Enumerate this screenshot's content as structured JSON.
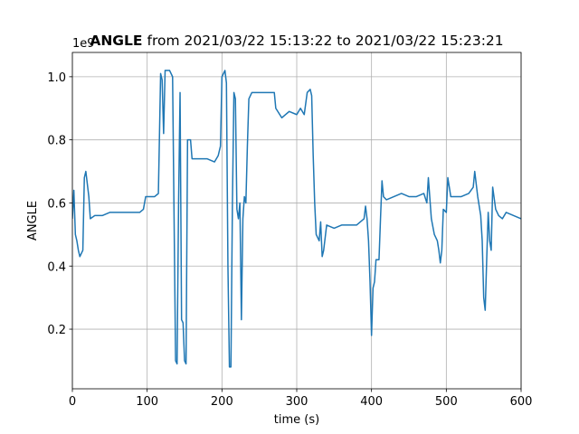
{
  "chart_data": {
    "type": "line",
    "title_bold": "ANGLE",
    "title": "from 2021/03/22 15:13:22 to 2021/03/22 15:23:21",
    "xlabel": "time (s)",
    "ylabel": "ANGLE",
    "offset_label": "1e9",
    "color": "#1f77b4",
    "grid": true,
    "xlim": [
      0,
      600
    ],
    "xticks": [
      0,
      100,
      200,
      300,
      400,
      500,
      600
    ],
    "ylim": [
      0.011,
      1.077
    ],
    "yticks": [
      0.2,
      0.4,
      0.6,
      0.8,
      {
        "value": 1,
        "label": "1.0"
      }
    ],
    "x": [
      0,
      2,
      4,
      6,
      8,
      10,
      12,
      14,
      16,
      18,
      20,
      22,
      24,
      30,
      40,
      50,
      60,
      70,
      80,
      90,
      95,
      98,
      105,
      110,
      115,
      118,
      120,
      122,
      124,
      130,
      134,
      136,
      138,
      140,
      142,
      144,
      146,
      148,
      150,
      152,
      154,
      158,
      160,
      170,
      180,
      190,
      195,
      198,
      200,
      204,
      206,
      208,
      210,
      212,
      214,
      216,
      218,
      220,
      222,
      224,
      226,
      228,
      230,
      232,
      234,
      236,
      240,
      250,
      260,
      270,
      272,
      280,
      290,
      300,
      305,
      310,
      314,
      318,
      320,
      322,
      324,
      326,
      330,
      332,
      334,
      336,
      340,
      350,
      360,
      370,
      380,
      390,
      392,
      394,
      396,
      398,
      400,
      402,
      404,
      406,
      410,
      412,
      414,
      416,
      420,
      430,
      440,
      450,
      460,
      470,
      474,
      476,
      480,
      484,
      488,
      490,
      492,
      494,
      496,
      500,
      502,
      506,
      510,
      520,
      530,
      536,
      538,
      542,
      546,
      548,
      550,
      552,
      554,
      556,
      558,
      560,
      562,
      566,
      570,
      575,
      580,
      590,
      600
    ],
    "values": [
      0.55,
      0.64,
      0.5,
      0.48,
      0.45,
      0.43,
      0.44,
      0.45,
      0.68,
      0.7,
      0.66,
      0.62,
      0.55,
      0.56,
      0.56,
      0.57,
      0.57,
      0.57,
      0.57,
      0.57,
      0.58,
      0.62,
      0.62,
      0.62,
      0.63,
      1.01,
      0.99,
      0.82,
      1.02,
      1.02,
      1.0,
      0.55,
      0.1,
      0.09,
      0.6,
      0.95,
      0.23,
      0.22,
      0.1,
      0.09,
      0.8,
      0.8,
      0.74,
      0.74,
      0.74,
      0.73,
      0.75,
      0.78,
      1.0,
      1.02,
      0.98,
      0.4,
      0.08,
      0.08,
      0.6,
      0.95,
      0.93,
      0.58,
      0.55,
      0.6,
      0.23,
      0.55,
      0.62,
      0.6,
      0.78,
      0.93,
      0.95,
      0.95,
      0.95,
      0.95,
      0.9,
      0.87,
      0.89,
      0.88,
      0.9,
      0.88,
      0.95,
      0.96,
      0.94,
      0.75,
      0.6,
      0.5,
      0.48,
      0.54,
      0.43,
      0.45,
      0.53,
      0.52,
      0.53,
      0.53,
      0.53,
      0.55,
      0.59,
      0.55,
      0.48,
      0.35,
      0.18,
      0.33,
      0.35,
      0.42,
      0.42,
      0.55,
      0.67,
      0.62,
      0.61,
      0.62,
      0.63,
      0.62,
      0.62,
      0.63,
      0.6,
      0.68,
      0.55,
      0.5,
      0.48,
      0.45,
      0.41,
      0.45,
      0.58,
      0.57,
      0.68,
      0.62,
      0.62,
      0.62,
      0.63,
      0.65,
      0.7,
      0.62,
      0.56,
      0.48,
      0.3,
      0.26,
      0.42,
      0.57,
      0.48,
      0.45,
      0.65,
      0.58,
      0.56,
      0.55,
      0.57,
      0.56,
      0.55
    ]
  }
}
